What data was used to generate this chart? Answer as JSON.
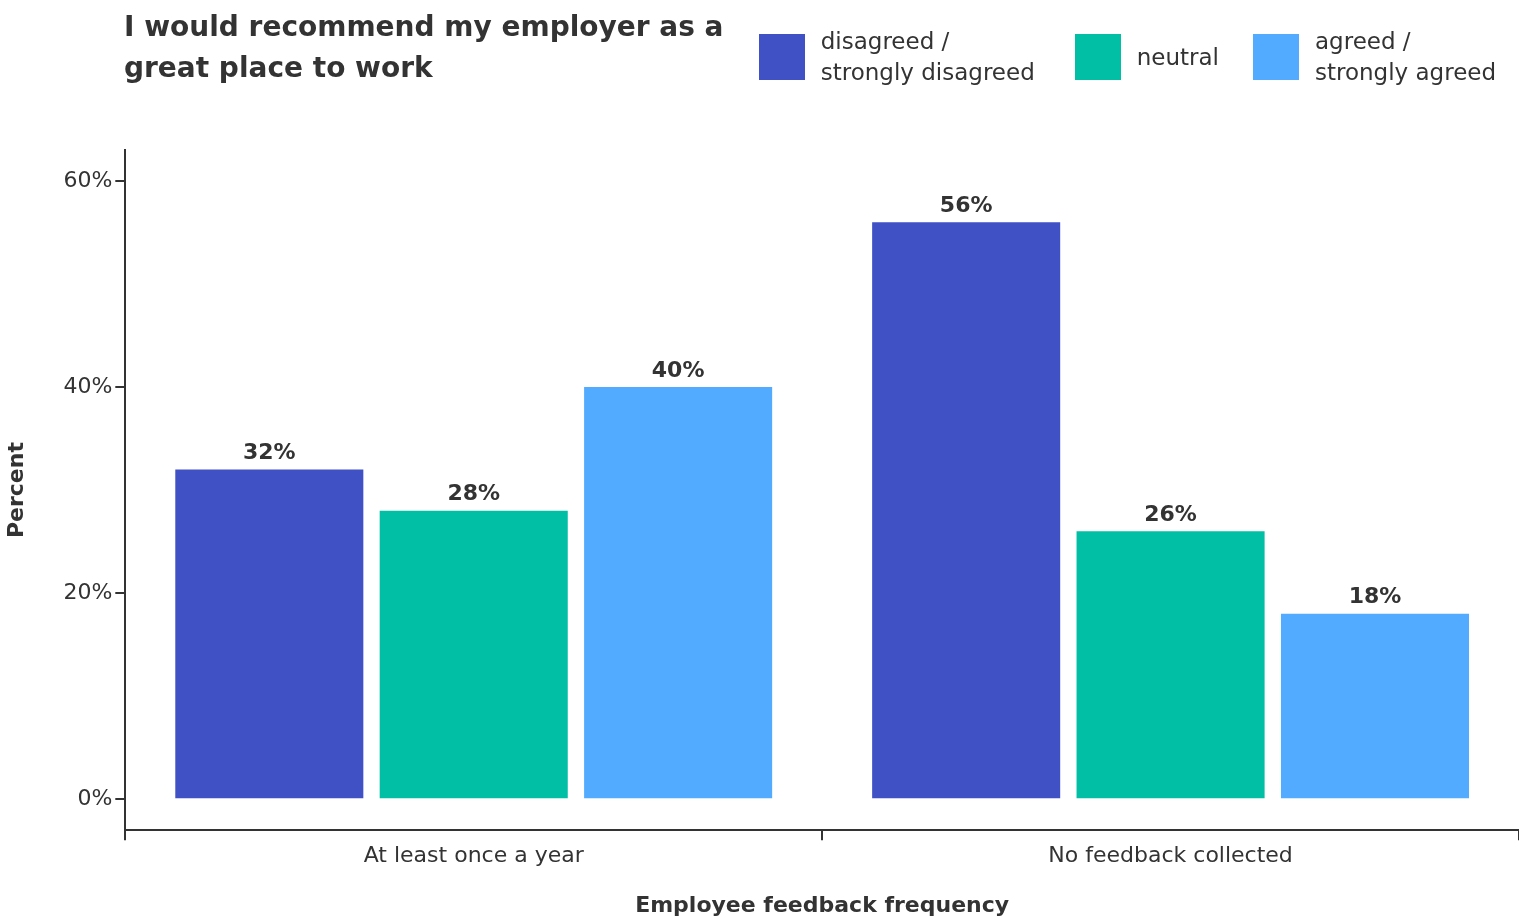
{
  "chart_data": {
    "type": "bar",
    "title": "I would recommend my employer as a great place to work",
    "xlabel": "Employee feedback frequency",
    "ylabel": "Percent",
    "categories": [
      "At least once a year",
      "No feedback collected"
    ],
    "series": [
      {
        "name": "disagreed / strongly disagreed",
        "color": "#4051c6",
        "values": [
          32,
          56
        ],
        "value_labels": [
          "32%",
          "56%"
        ]
      },
      {
        "name": "neutral",
        "color": "#00bfa5",
        "values": [
          28,
          26
        ],
        "value_labels": [
          "28%",
          "26%"
        ]
      },
      {
        "name": "agreed / strongly agreed",
        "color": "#52abff",
        "values": [
          40,
          18
        ],
        "value_labels": [
          "40%",
          "18%"
        ]
      }
    ],
    "ylim": [
      -3,
      63
    ],
    "yticks": [
      {
        "value": 0,
        "label": "0%"
      },
      {
        "value": 20,
        "label": "20%"
      },
      {
        "value": 40,
        "label": "40%"
      },
      {
        "value": 60,
        "label": "60%"
      }
    ],
    "grid": false,
    "legend": "top right"
  }
}
